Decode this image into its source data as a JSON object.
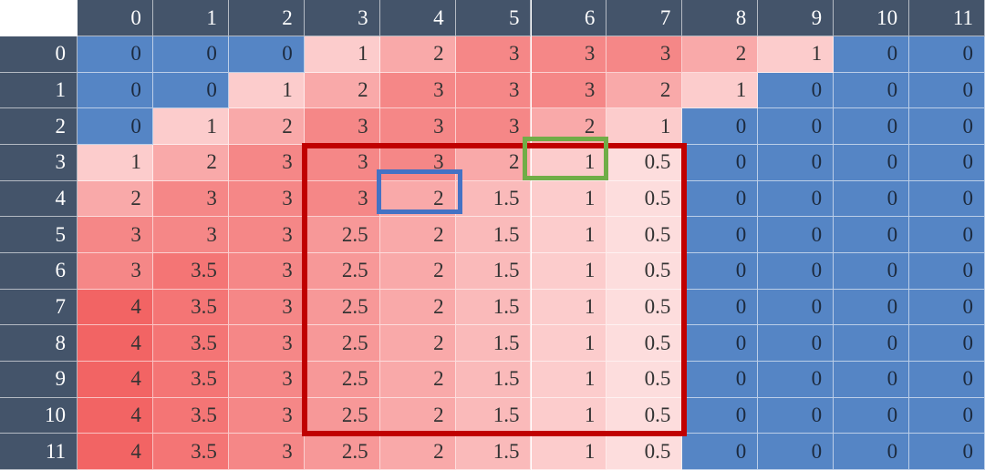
{
  "table": {
    "columns": [
      "0",
      "1",
      "2",
      "3",
      "4",
      "5",
      "6",
      "7",
      "8",
      "9",
      "10",
      "11"
    ],
    "row_labels": [
      "0",
      "1",
      "2",
      "3",
      "4",
      "5",
      "6",
      "7",
      "8",
      "9",
      "10",
      "11"
    ],
    "rows": [
      [
        0,
        0,
        0,
        1,
        2,
        3,
        3,
        3,
        2,
        1,
        0,
        0
      ],
      [
        0,
        0,
        1,
        2,
        3,
        3,
        3,
        2,
        1,
        0,
        0,
        0
      ],
      [
        0,
        1,
        2,
        3,
        3,
        3,
        2,
        1,
        0,
        0,
        0,
        0
      ],
      [
        1,
        2,
        3,
        3,
        3,
        2,
        1,
        0.5,
        0,
        0,
        0,
        0
      ],
      [
        2,
        3,
        3,
        3,
        2,
        1.5,
        1,
        0.5,
        0,
        0,
        0,
        0
      ],
      [
        3,
        3,
        3,
        2.5,
        2,
        1.5,
        1,
        0.5,
        0,
        0,
        0,
        0
      ],
      [
        3,
        3.5,
        3,
        2.5,
        2,
        1.5,
        1,
        0.5,
        0,
        0,
        0,
        0
      ],
      [
        4,
        3.5,
        3,
        2.5,
        2,
        1.5,
        1,
        0.5,
        0,
        0,
        0,
        0
      ],
      [
        4,
        3.5,
        3,
        2.5,
        2,
        1.5,
        1,
        0.5,
        0,
        0,
        0,
        0
      ],
      [
        4,
        3.5,
        3,
        2.5,
        2,
        1.5,
        1,
        0.5,
        0,
        0,
        0,
        0
      ],
      [
        4,
        3.5,
        3,
        2.5,
        2,
        1.5,
        1,
        0.5,
        0,
        0,
        0,
        0
      ],
      [
        4,
        3.5,
        3,
        2.5,
        2,
        1.5,
        1,
        0.5,
        0,
        0,
        0,
        0
      ]
    ]
  }
}
